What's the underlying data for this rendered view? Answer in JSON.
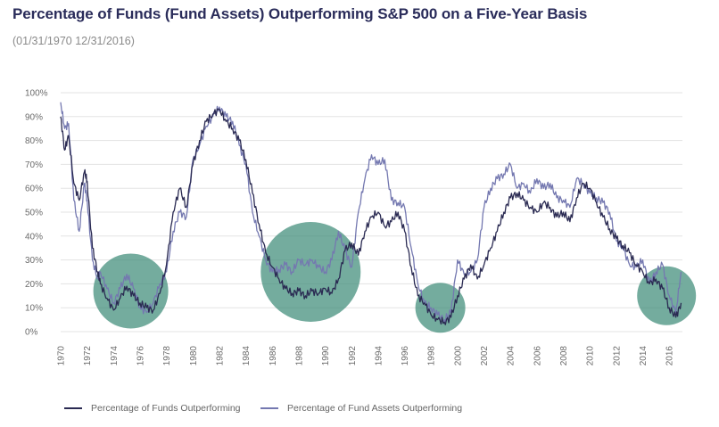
{
  "title": "Percentage of Funds (Fund Assets) Outperforming S&P 500 on a Five-Year Basis",
  "subtitle": "(01/31/1970 12/31/2016)",
  "colors": {
    "funds": "#2a2a52",
    "assets": "#7478b0",
    "highlight": "#3f8c78",
    "grid": "#e3e3e3"
  },
  "chart_data": {
    "type": "line",
    "title": "Percentage of Funds (Fund Assets) Outperforming S&P 500 on a Five-Year Basis",
    "xlabel": "",
    "ylabel": "",
    "xlim": [
      1970,
      2017
    ],
    "ylim": [
      0,
      100
    ],
    "grid": "horizontal",
    "legend_position": "bottom",
    "yticks": [
      "0%",
      "10%",
      "20%",
      "30%",
      "40%",
      "50%",
      "60%",
      "70%",
      "80%",
      "90%",
      "100%"
    ],
    "xticks": [
      "1970",
      "1972",
      "1974",
      "1976",
      "1978",
      "1980",
      "1982",
      "1984",
      "1986",
      "1988",
      "1990",
      "1992",
      "1994",
      "1996",
      "1998",
      "2000",
      "2002",
      "2004",
      "2006",
      "2008",
      "2010",
      "2012",
      "2014",
      "2016"
    ],
    "series": [
      {
        "name": "Percentage of Funds Outperforming",
        "x": [
          1970,
          1970.3,
          1970.6,
          1971,
          1971.4,
          1971.8,
          1972,
          1972.4,
          1972.8,
          1973,
          1973.5,
          1974,
          1974.5,
          1975,
          1975.5,
          1976,
          1976.5,
          1977,
          1977.5,
          1978,
          1978.5,
          1979,
          1979.5,
          1980,
          1980.5,
          1981,
          1981.5,
          1982,
          1982.5,
          1983,
          1983.5,
          1984,
          1984.5,
          1985,
          1985.5,
          1986,
          1986.5,
          1987,
          1987.5,
          1988,
          1988.5,
          1989,
          1989.5,
          1990,
          1990.5,
          1991,
          1991.5,
          1992,
          1992.5,
          1993,
          1993.5,
          1994,
          1994.5,
          1995,
          1995.5,
          1996,
          1996.5,
          1997,
          1997.5,
          1998,
          1998.5,
          1999,
          1999.5,
          2000,
          2000.5,
          2001,
          2001.5,
          2002,
          2002.5,
          2003,
          2003.5,
          2004,
          2004.5,
          2005,
          2005.5,
          2006,
          2006.5,
          2007,
          2007.5,
          2008,
          2008.5,
          2009,
          2009.5,
          2010,
          2010.5,
          2011,
          2011.5,
          2012,
          2012.5,
          2013,
          2013.5,
          2014,
          2014.5,
          2015,
          2015.5,
          2016,
          2016.5,
          2016.9
        ],
        "values": [
          90,
          76,
          82,
          62,
          55,
          67,
          63,
          35,
          25,
          20,
          14,
          9,
          14,
          19,
          15,
          12,
          10,
          9,
          16,
          28,
          50,
          60,
          52,
          70,
          80,
          88,
          91,
          93,
          88,
          85,
          80,
          72,
          58,
          45,
          33,
          27,
          22,
          18,
          16,
          17,
          15,
          17,
          16,
          18,
          16,
          22,
          34,
          37,
          32,
          42,
          48,
          50,
          44,
          46,
          50,
          42,
          27,
          15,
          12,
          7,
          5,
          4,
          6,
          15,
          22,
          28,
          22,
          28,
          35,
          42,
          50,
          56,
          58,
          55,
          52,
          50,
          54,
          52,
          48,
          50,
          46,
          56,
          62,
          60,
          54,
          48,
          43,
          39,
          36,
          33,
          28,
          25,
          20,
          22,
          18,
          10,
          6,
          12
        ]
      },
      {
        "name": "Percentage of Fund Assets Outperforming",
        "x": [
          1970,
          1970.3,
          1970.6,
          1971,
          1971.4,
          1971.8,
          1972,
          1972.4,
          1972.8,
          1973,
          1973.5,
          1974,
          1974.5,
          1975,
          1975.5,
          1976,
          1976.5,
          1977,
          1977.5,
          1978,
          1978.5,
          1979,
          1979.5,
          1980,
          1980.5,
          1981,
          1981.5,
          1982,
          1982.5,
          1983,
          1983.5,
          1984,
          1984.5,
          1985,
          1985.5,
          1986,
          1986.5,
          1987,
          1987.5,
          1988,
          1988.5,
          1989,
          1989.5,
          1990,
          1990.5,
          1991,
          1991.5,
          1992,
          1992.5,
          1993,
          1993.5,
          1994,
          1994.5,
          1995,
          1995.5,
          1996,
          1996.5,
          1997,
          1997.5,
          1998,
          1998.5,
          1999,
          1999.5,
          2000,
          2000.5,
          2001,
          2001.5,
          2002,
          2002.5,
          2003,
          2003.5,
          2004,
          2004.5,
          2005,
          2005.5,
          2006,
          2006.5,
          2007,
          2007.5,
          2008,
          2008.5,
          2009,
          2009.5,
          2010,
          2010.5,
          2011,
          2011.5,
          2012,
          2012.5,
          2013,
          2013.5,
          2014,
          2014.5,
          2015,
          2015.5,
          2016,
          2016.5,
          2016.9
        ],
        "values": [
          96,
          85,
          87,
          55,
          42,
          62,
          55,
          30,
          22,
          25,
          18,
          12,
          18,
          24,
          18,
          10,
          8,
          12,
          20,
          25,
          42,
          50,
          48,
          72,
          78,
          86,
          90,
          94,
          90,
          88,
          78,
          70,
          50,
          40,
          30,
          25,
          26,
          28,
          25,
          30,
          28,
          30,
          27,
          25,
          30,
          42,
          34,
          27,
          50,
          64,
          74,
          70,
          72,
          55,
          54,
          52,
          35,
          20,
          12,
          10,
          7,
          5,
          8,
          30,
          24,
          25,
          30,
          52,
          60,
          64,
          66,
          70,
          60,
          62,
          58,
          64,
          60,
          62,
          56,
          55,
          52,
          64,
          62,
          58,
          56,
          54,
          50,
          38,
          35,
          28,
          27,
          30,
          20,
          25,
          28,
          15,
          8,
          25
        ]
      }
    ],
    "annotations": [
      "highlight-circles"
    ]
  }
}
